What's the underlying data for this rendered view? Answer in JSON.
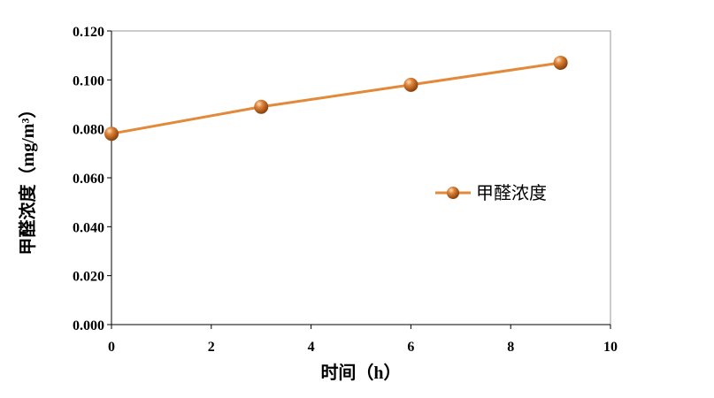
{
  "chart_data": {
    "type": "line",
    "x": [
      0,
      3,
      6,
      9
    ],
    "series": [
      {
        "name": "甲醛浓度",
        "values": [
          0.078,
          0.089,
          0.098,
          0.107
        ]
      }
    ],
    "xlabel": "时间（h）",
    "ylabel": "甲醛浓度（mg/m³）",
    "xlim": [
      0,
      10
    ],
    "ylim": [
      0,
      0.12
    ],
    "xticks": [
      "0",
      "2",
      "4",
      "6",
      "8",
      "10"
    ],
    "yticks": [
      "0.000",
      "0.020",
      "0.040",
      "0.060",
      "0.080",
      "0.100",
      "0.120"
    ],
    "grid": false,
    "legend_position": "right",
    "colors": {
      "line": "#e3893a",
      "marker": "#c8641a",
      "marker_highlight": "#f7c79a",
      "axis": "#000000",
      "frame": "#9a9a9a"
    }
  }
}
